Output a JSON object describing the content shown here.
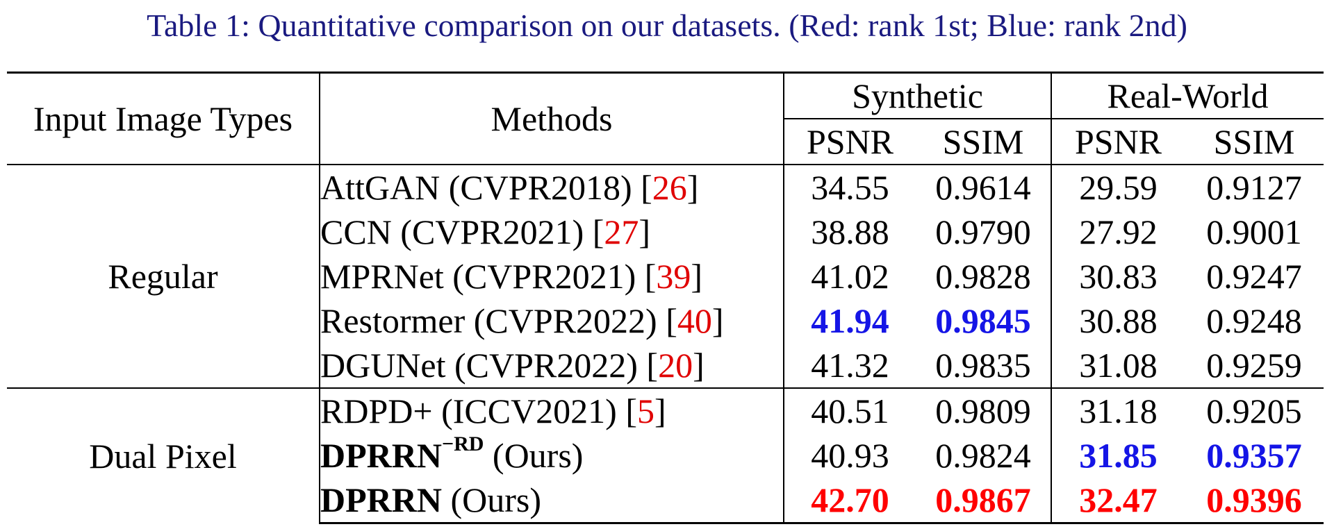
{
  "caption": "Table 1: Quantitative comparison on our datasets. (Red: rank 1st; Blue: rank 2nd)",
  "header": {
    "input_types": "Input Image Types",
    "methods": "Methods",
    "synthetic": "Synthetic",
    "real_world": "Real-World",
    "psnr": "PSNR",
    "ssim": "SSIM"
  },
  "groups": {
    "regular": "Regular",
    "dual_pixel": "Dual Pixel"
  },
  "rows": [
    {
      "name": "AttGAN (CVPR2018) [",
      "ref": "26",
      "close": "]",
      "syn_psnr": "34.55",
      "syn_ssim": "0.9614",
      "real_psnr": "29.59",
      "real_ssim": "0.9127"
    },
    {
      "name": "CCN (CVPR2021) [",
      "ref": "27",
      "close": "]",
      "syn_psnr": "38.88",
      "syn_ssim": "0.9790",
      "real_psnr": "27.92",
      "real_ssim": "0.9001"
    },
    {
      "name": "MPRNet (CVPR2021) [",
      "ref": "39",
      "close": "]",
      "syn_psnr": "41.02",
      "syn_ssim": "0.9828",
      "real_psnr": "30.83",
      "real_ssim": "0.9247"
    },
    {
      "name": "Restormer (CVPR2022) [",
      "ref": "40",
      "close": "]",
      "syn_psnr": "41.94",
      "syn_ssim": "0.9845",
      "real_psnr": "30.88",
      "real_ssim": "0.9248"
    },
    {
      "name": "DGUNet (CVPR2022) [",
      "ref": "20",
      "close": "]",
      "syn_psnr": "41.32",
      "syn_ssim": "0.9835",
      "real_psnr": "31.08",
      "real_ssim": "0.9259"
    },
    {
      "name": "RDPD+ (ICCV2021) [",
      "ref": "5",
      "close": "]",
      "syn_psnr": "40.51",
      "syn_ssim": "0.9809",
      "real_psnr": "31.18",
      "real_ssim": "0.9205"
    },
    {
      "name_bold": "DPRRN",
      "sup": "−RD",
      "name_rest": " (Ours)",
      "syn_psnr": "40.93",
      "syn_ssim": "0.9824",
      "real_psnr": "31.85",
      "real_ssim": "0.9357"
    },
    {
      "name_bold": "DPRRN",
      "name_rest": " (Ours)",
      "syn_psnr": "42.70",
      "syn_ssim": "0.9867",
      "real_psnr": "32.47",
      "real_ssim": "0.9396"
    }
  ],
  "colors": {
    "caption": "#1a1a80",
    "rank_1st": "#ff0000",
    "rank_2nd": "#1515e6",
    "reference": "#e00000"
  }
}
